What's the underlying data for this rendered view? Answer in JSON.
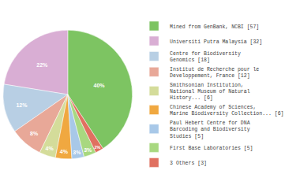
{
  "chart_data": {
    "type": "pie",
    "categories": [
      "Mined from GenBank, NCBI [57]",
      "Universiti Putra Malaysia [32]",
      "Centre for Biodiversity\nGenomics [18]",
      "Institut de Recherche pour le\nDeveloppement, France [12]",
      "Smithsonian Institution,\nNational Museum of Natural\nHistory... [6]",
      "Chinese Academy of Sciences,\nMarine Biodiversity Collection... [6]",
      "Paul Hebert Centre for DNA\nBarcoding and Biodiversity\nStudies [5]",
      "First Base Laboratories [5]",
      "3 Others [3]"
    ],
    "values": [
      40,
      22,
      12,
      8,
      4,
      4,
      3,
      3,
      2
    ],
    "value_labels": [
      "40%",
      "22%",
      "12%",
      "8%",
      "4%",
      "4%",
      "3%",
      "3%",
      "2%"
    ],
    "colors": [
      "#7dc462",
      "#d9aed4",
      "#b8cfe4",
      "#e8a898",
      "#d4dc9a",
      "#f0a840",
      "#a8c8e8",
      "#a8d880",
      "#e07060"
    ],
    "data_labels": true,
    "legend": "right"
  }
}
